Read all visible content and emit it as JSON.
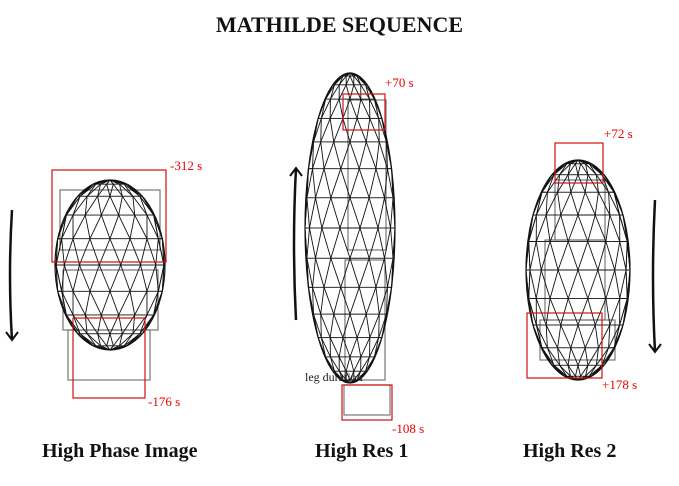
{
  "title": "MATHILDE SEQUENCE",
  "panels": [
    {
      "caption": "High Phase Image",
      "start_label": "-312 s",
      "end_label": "-176 s",
      "rotation_arrow": "down"
    },
    {
      "caption": "High Res 1",
      "start_label": "+70 s",
      "end_label": "-108 s",
      "rotation_arrow": "up",
      "scan_text": "leg duration"
    },
    {
      "caption": "High Res 2",
      "start_label": "+72 s",
      "end_label": "+178 s",
      "rotation_arrow": "down"
    }
  ],
  "colors": {
    "frame_box": "#d01010",
    "label": "#ee0000",
    "mesh": "#111111"
  }
}
